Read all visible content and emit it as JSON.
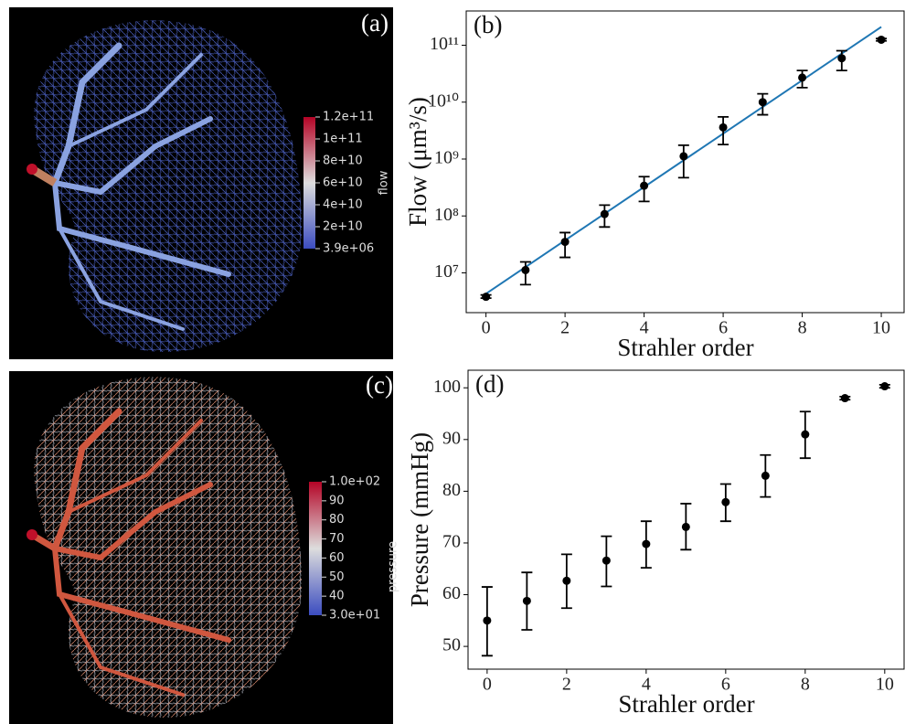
{
  "renders": [
    {
      "label": "(a)",
      "colorbar_title": "flow",
      "colorbar_ticks": [
        "1.2e+11",
        "1e+11",
        "8e+10",
        "6e+10",
        "4e+10",
        "2e+10",
        "3.9e+06"
      ]
    },
    {
      "label": "(c)",
      "colorbar_title": "pressure",
      "colorbar_ticks": [
        "1.0e+02",
        "90",
        "80",
        "70",
        "60",
        "50",
        "40",
        "3.0e+01"
      ]
    }
  ],
  "chart_data": [
    {
      "type": "errorbar",
      "label": "(b)",
      "xlabel": "Strahler order",
      "ylabel": "Flow (μm³/s)",
      "ylog": true,
      "x": [
        0,
        1,
        2,
        3,
        4,
        5,
        6,
        7,
        8,
        9,
        10
      ],
      "values": [
        3800000,
        11200000,
        35000000,
        108000000,
        340000000,
        1120000000,
        3600000000,
        10000000000,
        27000000000,
        59000000000,
        125000000000
      ],
      "lower": [
        3600000,
        6200000,
        18700000,
        64000000,
        180000000,
        470000000,
        1800000000,
        6000000000,
        18000000000,
        36000000000,
        119000000000
      ],
      "upper": [
        4100000,
        15600000,
        51000000,
        155000000,
        490000000,
        1750000000,
        5500000000,
        14000000000,
        36000000000,
        80000000000,
        131000000000
      ],
      "color": "#000000",
      "fit": {
        "x": [
          0,
          10
        ],
        "values": [
          4300000,
          210000000000
        ],
        "color": "#1f77b4"
      },
      "xlim": [
        -0.5,
        10.6
      ],
      "ylim": [
        2000000,
        400000000000
      ],
      "xticks": [
        0,
        2,
        4,
        6,
        8,
        10
      ],
      "yticks": [
        {
          "value": 10000000,
          "label": "10⁷"
        },
        {
          "value": 100000000,
          "label": "10⁸"
        },
        {
          "value": 1000000000,
          "label": "10⁹"
        },
        {
          "value": 10000000000,
          "label": "10¹⁰"
        },
        {
          "value": 100000000000,
          "label": "10¹¹"
        }
      ]
    },
    {
      "type": "errorbar",
      "label": "(d)",
      "xlabel": "Strahler order",
      "ylabel": "Pressure (mmHg)",
      "ylog": false,
      "x": [
        0,
        1,
        2,
        3,
        4,
        5,
        6,
        7,
        8,
        9,
        10
      ],
      "values": [
        55,
        58.8,
        62.7,
        66.6,
        69.8,
        73.1,
        77.9,
        83,
        91,
        98,
        100.3
      ],
      "lower": [
        48.2,
        53.2,
        57.4,
        61.6,
        65.2,
        68.7,
        74.2,
        78.9,
        86.4,
        97.7,
        100
      ],
      "upper": [
        61.5,
        64.3,
        67.8,
        71.3,
        74.2,
        77.6,
        81.4,
        87,
        95.4,
        98.3,
        100.6
      ],
      "color": "#000000",
      "xlim": [
        -0.48,
        10.51
      ],
      "ylim": [
        45.6,
        103.4
      ],
      "xticks": [
        0,
        2,
        4,
        6,
        8,
        10
      ],
      "yticks": [
        50,
        60,
        70,
        80,
        90,
        100
      ]
    }
  ]
}
